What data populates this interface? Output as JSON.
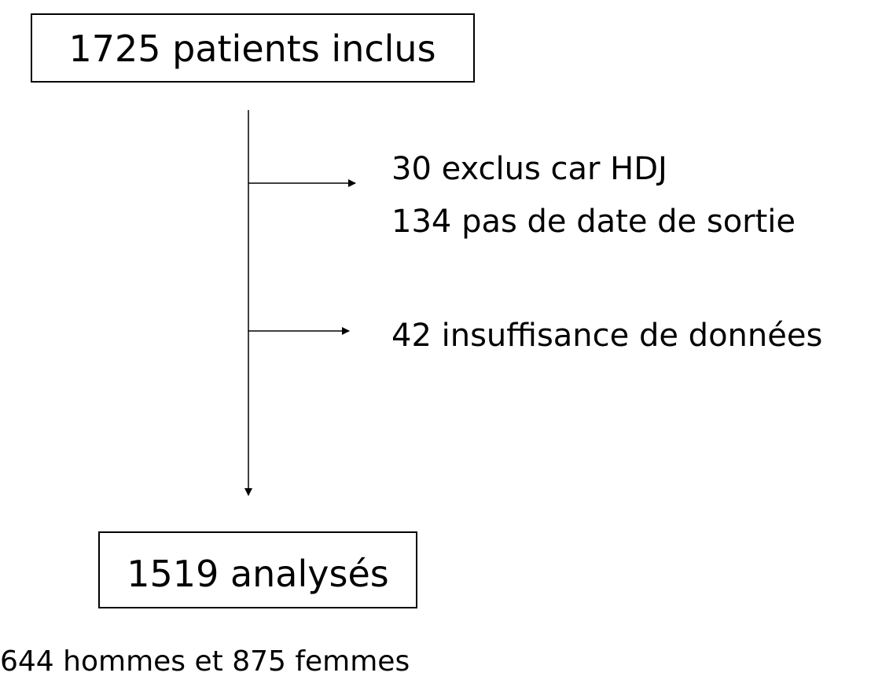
{
  "nodes": [
    {
      "label": "1725 patients inclus"
    },
    {
      "label": "1519 analysés"
    }
  ],
  "exclusions": [
    {
      "lines": [
        "30  exclus car  HDJ",
        "134 pas de date de sortie"
      ]
    },
    {
      "lines": [
        "42 insuffisance de données"
      ]
    }
  ],
  "note": "644 hommes et 875 femmes"
}
